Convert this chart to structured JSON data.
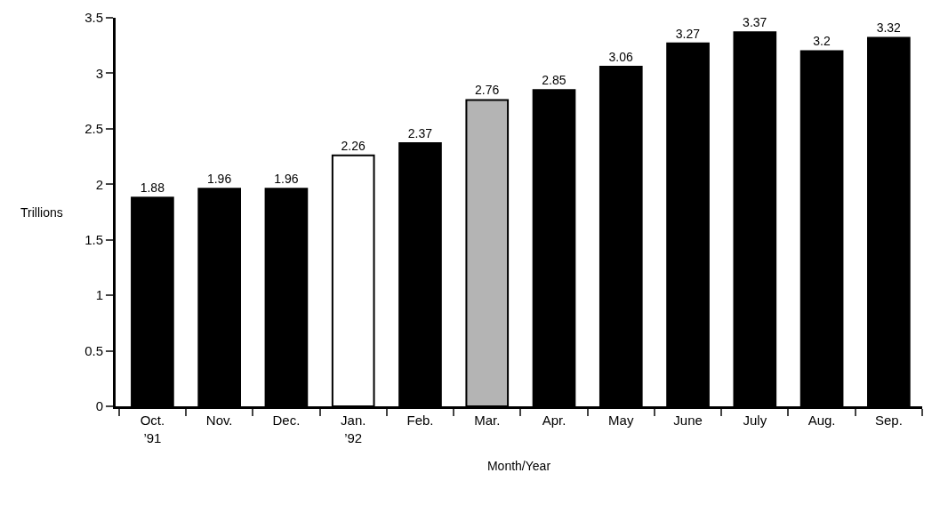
{
  "chart_data": {
    "type": "bar",
    "xlabel": "Month/Year",
    "ylabel": "Trillions",
    "categories": [
      "Oct.\n’91",
      "Nov.",
      "Dec.",
      "Jan.\n’92",
      "Feb.",
      "Mar.",
      "Apr.",
      "May",
      "June",
      "July",
      "Aug.",
      "Sep."
    ],
    "values": [
      1.88,
      1.96,
      1.96,
      2.26,
      2.37,
      2.76,
      2.85,
      3.06,
      3.27,
      3.37,
      3.2,
      3.32
    ],
    "colors": [
      "#000000",
      "#000000",
      "#000000",
      "#ffffff",
      "#000000",
      "#b4b4b4",
      "#000000",
      "#000000",
      "#000000",
      "#000000",
      "#000000",
      "#000000"
    ],
    "data_labels": true,
    "ylim": [
      0,
      3.5
    ],
    "yticks": [
      0,
      0.5,
      1,
      1.5,
      2,
      2.5,
      3,
      3.5
    ],
    "grid": false
  }
}
